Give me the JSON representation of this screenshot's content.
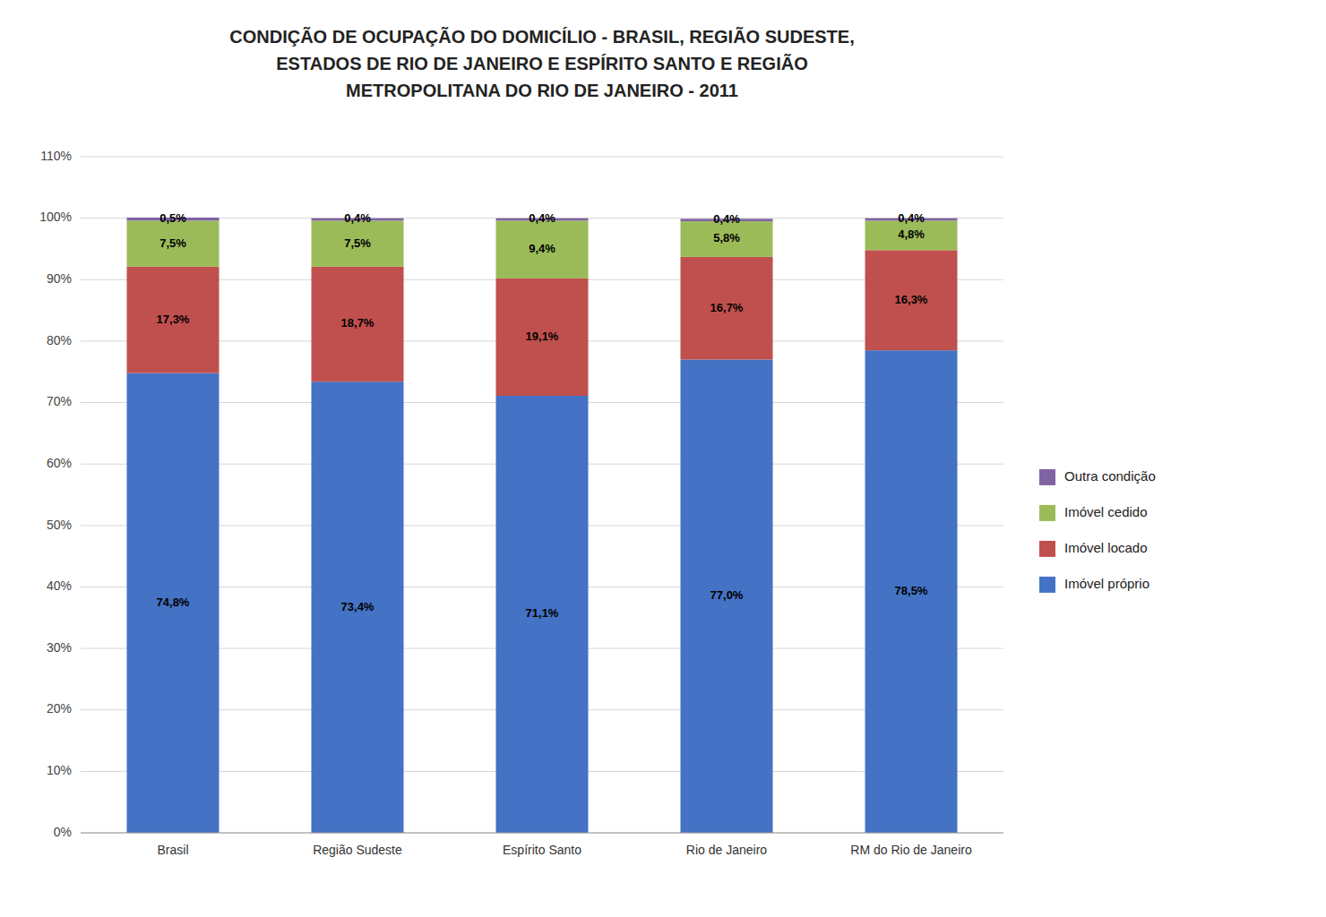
{
  "chart_data": {
    "type": "bar",
    "stacked": true,
    "title": "CONDIÇÃO DE OCUPAÇÃO DO DOMICÍLIO - BRASIL, REGIÃO SUDESTE,\nESTADOS DE RIO DE JANEIRO E ESPÍRITO SANTO E REGIÃO\nMETROPOLITANA DO RIO DE JANEIRO - 2011",
    "categories": [
      "Brasil",
      "Região Sudeste",
      "Espírito Santo",
      "Rio de Janeiro",
      "RM do Rio de Janeiro"
    ],
    "series": [
      {
        "name": "Imóvel próprio",
        "color": "#4472C4",
        "values": [
          74.8,
          73.4,
          71.1,
          77.0,
          78.5
        ],
        "value_labels": [
          "74,8%",
          "73,4%",
          "71,1%",
          "77,0%",
          "78,5%"
        ]
      },
      {
        "name": "Imóvel locado",
        "color": "#C0504D",
        "values": [
          17.3,
          18.7,
          19.1,
          16.7,
          16.3
        ],
        "value_labels": [
          "17,3%",
          "18,7%",
          "19,1%",
          "16,7%",
          "16,3%"
        ]
      },
      {
        "name": "Imóvel cedido",
        "color": "#9BBB59",
        "values": [
          7.5,
          7.5,
          9.4,
          5.8,
          4.8
        ],
        "value_labels": [
          "7,5%",
          "7,5%",
          "9,4%",
          "5,8%",
          "4,8%"
        ]
      },
      {
        "name": "Outra condição",
        "color": "#8064A2",
        "values": [
          0.5,
          0.4,
          0.4,
          0.4,
          0.4
        ],
        "value_labels": [
          "0,5%",
          "0,4%",
          "0,4%",
          "0,4%",
          "0,4%"
        ]
      }
    ],
    "ylim": [
      0,
      110
    ],
    "yticks": [
      {
        "value": 0,
        "label": "0%"
      },
      {
        "value": 10,
        "label": "10%"
      },
      {
        "value": 20,
        "label": "20%"
      },
      {
        "value": 30,
        "label": "30%"
      },
      {
        "value": 40,
        "label": "40%"
      },
      {
        "value": 50,
        "label": "50%"
      },
      {
        "value": 60,
        "label": "60%"
      },
      {
        "value": 70,
        "label": "70%"
      },
      {
        "value": 80,
        "label": "80%"
      },
      {
        "value": 90,
        "label": "90%"
      },
      {
        "value": 100,
        "label": "100%"
      },
      {
        "value": 110,
        "label": "110%"
      }
    ],
    "grid": true,
    "legend": "right",
    "data_labels": true
  }
}
